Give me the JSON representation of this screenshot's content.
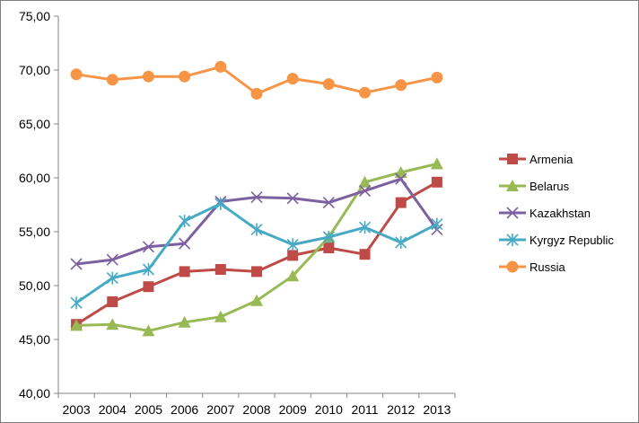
{
  "chart_data": {
    "type": "line",
    "title": "",
    "xlabel": "",
    "ylabel": "",
    "ylim": [
      40,
      75
    ],
    "y_ticks": [
      "40,00",
      "45,00",
      "50,00",
      "55,00",
      "60,00",
      "65,00",
      "70,00",
      "75,00"
    ],
    "x": [
      "2003",
      "2004",
      "2005",
      "2006",
      "2007",
      "2008",
      "2009",
      "2010",
      "2011",
      "2012",
      "2013"
    ],
    "grid": false,
    "legend_position": "right",
    "series": [
      {
        "name": "Armenia",
        "color": "#be4b48",
        "marker": "square",
        "values": [
          46.4,
          48.5,
          49.9,
          51.3,
          51.5,
          51.3,
          52.8,
          53.5,
          52.9,
          57.7,
          59.6
        ]
      },
      {
        "name": "Belarus",
        "color": "#98b954",
        "marker": "triangle",
        "values": [
          46.3,
          46.4,
          45.8,
          46.6,
          47.1,
          48.6,
          50.9,
          54.5,
          59.6,
          60.5,
          61.3
        ]
      },
      {
        "name": "Kazakhstan",
        "color": "#7d60a0",
        "marker": "x",
        "values": [
          52.0,
          52.4,
          53.6,
          53.9,
          57.8,
          58.2,
          58.1,
          57.7,
          58.8,
          59.9,
          55.2
        ]
      },
      {
        "name": "Kyrgyz Republic",
        "color": "#46aac4",
        "marker": "star",
        "values": [
          48.4,
          50.7,
          51.5,
          56.0,
          57.6,
          55.2,
          53.8,
          54.5,
          55.4,
          54.0,
          55.7
        ]
      },
      {
        "name": "Russia",
        "color": "#f69546",
        "marker": "circle",
        "values": [
          69.6,
          69.1,
          69.4,
          69.4,
          70.3,
          67.8,
          69.2,
          68.7,
          67.9,
          68.6,
          69.3
        ]
      }
    ]
  }
}
